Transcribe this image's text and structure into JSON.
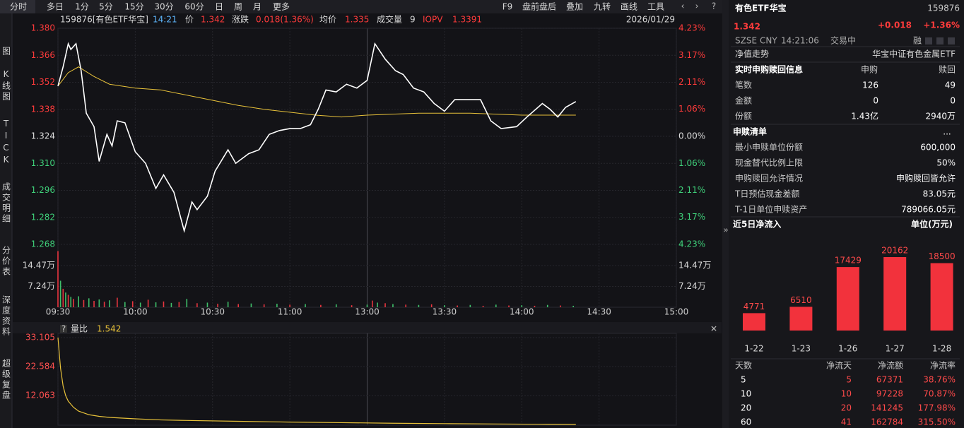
{
  "toolbar": {
    "tabs": [
      "分时",
      "多日",
      "1分",
      "5分",
      "15分",
      "30分",
      "60分",
      "日",
      "周",
      "月",
      "更多"
    ],
    "tools": [
      "F9",
      "盘前盘后",
      "叠加",
      "九转",
      "画线",
      "工具"
    ]
  },
  "sidebar": [
    "图",
    "K线图",
    "TICK",
    "成交明细",
    "分价表",
    "深度资料",
    "超级复盘"
  ],
  "info_bar": {
    "code": "159876[有色ETF华宝]",
    "time": "14:21",
    "price_label": "价",
    "price": "1.342",
    "change_label": "涨跌",
    "change": "0.018(1.36%)",
    "avg_label": "均价",
    "avg": "1.335",
    "volume_label": "成交量",
    "volume": "9",
    "iopv_label": "IOPV",
    "iopv": "1.3391",
    "date": "2026/01/29"
  },
  "chart_data": [
    {
      "type": "line",
      "xlim": [
        0,
        240
      ],
      "xticks": [
        {
          "value": 0,
          "label": "09:30"
        },
        {
          "value": 30,
          "label": "10:00"
        },
        {
          "value": 60,
          "label": "10:30"
        },
        {
          "value": 90,
          "label": "11:00"
        },
        {
          "value": 120,
          "label": "13:00"
        },
        {
          "value": 150,
          "label": "13:30"
        },
        {
          "value": 180,
          "label": "14:00"
        },
        {
          "value": 210,
          "label": "14:30"
        },
        {
          "value": 240,
          "label": "15:00"
        }
      ],
      "ylim": [
        1.268,
        1.38
      ],
      "yticks": [
        {
          "value": 1.38,
          "label": "1.380"
        },
        1.366,
        1.352,
        1.338,
        1.324,
        {
          "value": 1.31,
          "label": "1.310"
        },
        1.296,
        1.282,
        1.268
      ],
      "y2lim": [
        -4.23,
        4.23
      ],
      "y2ticks": [
        {
          "value": 4.23,
          "label": "4.23%"
        },
        {
          "value": 3.17,
          "label": "3.17%"
        },
        {
          "value": 2.11,
          "label": "2.11%"
        },
        {
          "value": 1.06,
          "label": "1.06%"
        },
        {
          "value": 0,
          "label": "0.00%"
        },
        {
          "value": -1.06,
          "label": "1.06%"
        },
        {
          "value": -2.11,
          "label": "2.11%"
        },
        {
          "value": -3.17,
          "label": "3.17%"
        },
        {
          "value": -4.23,
          "label": "4.23%"
        }
      ],
      "grid": true,
      "series": [
        {
          "color": "#ffffff",
          "x": [
            0,
            2,
            4,
            5,
            7,
            9,
            10,
            11,
            14,
            16,
            19,
            21,
            23,
            26,
            30,
            34,
            38,
            41,
            45,
            49,
            52,
            54,
            58,
            61,
            66,
            69,
            74,
            78,
            82,
            86,
            90,
            94,
            98,
            101,
            104,
            108,
            112,
            116,
            120,
            123,
            127,
            131,
            134,
            138,
            142,
            146,
            150,
            154,
            159,
            164,
            168,
            172,
            178,
            182,
            188,
            191,
            194,
            197,
            201
          ],
          "values": [
            1.35,
            1.36,
            1.372,
            1.369,
            1.372,
            1.358,
            1.347,
            1.336,
            1.329,
            1.311,
            1.325,
            1.319,
            1.332,
            1.331,
            1.316,
            1.31,
            1.297,
            1.304,
            1.295,
            1.275,
            1.29,
            1.286,
            1.293,
            1.306,
            1.317,
            1.31,
            1.315,
            1.317,
            1.325,
            1.327,
            1.328,
            1.328,
            1.33,
            1.338,
            1.348,
            1.347,
            1.351,
            1.349,
            1.353,
            1.372,
            1.364,
            1.358,
            1.356,
            1.349,
            1.347,
            1.341,
            1.337,
            1.343,
            1.343,
            1.343,
            1.332,
            1.328,
            1.329,
            1.334,
            1.341,
            1.338,
            1.334,
            1.339,
            1.342
          ]
        },
        {
          "color": "#e8c23a",
          "x": [
            0,
            4,
            8,
            14,
            20,
            30,
            40,
            55,
            70,
            80,
            100,
            110,
            120,
            140,
            160,
            180,
            201
          ],
          "values": [
            1.35,
            1.357,
            1.36,
            1.355,
            1.351,
            1.349,
            1.348,
            1.344,
            1.34,
            1.338,
            1.335,
            1.334,
            1.335,
            1.336,
            1.336,
            1.335,
            1.335
          ]
        }
      ]
    },
    {
      "type": "bar",
      "xlim": [
        0,
        240
      ],
      "ylim": [
        0,
        21.83
      ],
      "yticks": [
        {
          "value": 14.47,
          "label": "14.47万"
        },
        {
          "value": 7.24,
          "label": "7.24万"
        }
      ],
      "series": [
        {
          "color": "#e8363f",
          "x": [
            0,
            2,
            4,
            6,
            10,
            14,
            18,
            23,
            29,
            35,
            41,
            47,
            54,
            62,
            70,
            80,
            90,
            102,
            114,
            122,
            127,
            135,
            145,
            155,
            165,
            175,
            185,
            195
          ],
          "values": [
            19.5,
            6.4,
            4.3,
            2.9,
            2.5,
            2.2,
            1.9,
            3.3,
            2.1,
            2.6,
            2.0,
            1.8,
            1.4,
            1.2,
            1.1,
            1.0,
            0.9,
            0.8,
            0.7,
            2.3,
            1.4,
            0.9,
            1.0,
            0.6,
            0.5,
            0.6,
            0.5,
            0.6
          ]
        },
        {
          "color": "#3fbf6a",
          "x": [
            1,
            3,
            5,
            8,
            12,
            16,
            20,
            26,
            32,
            38,
            44,
            50,
            58,
            66,
            75,
            85,
            96,
            108,
            120,
            124,
            130,
            140,
            150,
            160,
            170,
            180,
            190,
            200
          ],
          "values": [
            9.2,
            5.1,
            3.6,
            3.8,
            3.1,
            2.7,
            2.4,
            1.8,
            1.6,
            1.7,
            1.5,
            2.9,
            1.6,
            1.9,
            1.3,
            1.2,
            1.1,
            1.0,
            0.9,
            1.6,
            1.1,
            0.8,
            0.7,
            0.8,
            0.9,
            0.7,
            0.8,
            0.5
          ]
        }
      ]
    },
    {
      "type": "line",
      "title": "量比",
      "latest": "1.542",
      "xlim": [
        0,
        240
      ],
      "ylim": [
        1.542,
        33.105
      ],
      "yticks": [
        33.105,
        22.584,
        12.063
      ],
      "series": [
        {
          "color": "#e8c23a",
          "x": [
            0,
            1,
            2,
            3,
            4,
            6,
            8,
            12,
            16,
            20,
            30,
            40,
            50,
            70,
            90,
            110,
            130,
            150,
            170,
            190,
            201
          ],
          "values": [
            33.105,
            22.0,
            15.5,
            12.0,
            10.0,
            7.8,
            6.4,
            5.1,
            4.5,
            4.1,
            3.6,
            3.2,
            3.0,
            2.7,
            2.4,
            2.2,
            2.0,
            1.85,
            1.72,
            1.6,
            1.542
          ]
        }
      ]
    },
    {
      "type": "bar",
      "title": "近5日净流入",
      "unit": "单位(万元)",
      "categories": [
        "1-22",
        "1-23",
        "1-26",
        "1-27",
        "1-28"
      ],
      "values": [
        4771,
        6510,
        17429,
        20162,
        18500
      ],
      "color": "#f2323c"
    }
  ],
  "panel": {
    "name": "有色ETF华宝",
    "code": "159876",
    "price": "1.342",
    "change": "+0.018",
    "change_pct": "+1.36%",
    "meta": [
      "SZSE",
      "CNY",
      "14:21:06",
      "交易中"
    ],
    "tag": "融",
    "nav_label": "净值走势",
    "fund_name": "华宝中证有色金属ETF",
    "realtime": {
      "title": "实时申购赎回信息",
      "headers": [
        "申购",
        "赎回"
      ],
      "rows": [
        [
          "笔数",
          "126",
          "49"
        ],
        [
          "金额",
          "0",
          "0"
        ],
        [
          "份额",
          "1.43亿",
          "2940万"
        ]
      ]
    },
    "list": {
      "title": "申赎清单",
      "more": "...",
      "rows": [
        [
          "最小申赎单位份额",
          "600,000"
        ],
        [
          "现金替代比例上限",
          "50%"
        ],
        [
          "申购赎回允许情况",
          "申购赎回皆允许"
        ],
        [
          "T日预估现金差额",
          "83.05元"
        ],
        [
          "T-1日单位申赎资产",
          "789066.05元"
        ]
      ]
    },
    "flow_table": {
      "headers": [
        "天数",
        "净流天",
        "净流额",
        "净流率"
      ],
      "rows": [
        [
          "5",
          "5",
          "67371",
          "38.76%"
        ],
        [
          "10",
          "10",
          "97228",
          "70.87%"
        ],
        [
          "20",
          "20",
          "141245",
          "177.98%"
        ],
        [
          "60",
          "41",
          "162784",
          "315.50%"
        ]
      ]
    }
  }
}
